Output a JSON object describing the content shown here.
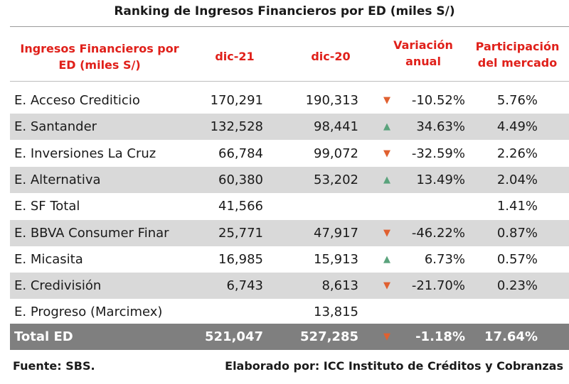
{
  "title": "Ranking de Ingresos Financieros por ED (miles S/)",
  "headers": {
    "col1_line1": "Ingresos Financieros por",
    "col1_line2": "ED (miles S/)",
    "dic21": "dic-21",
    "dic20": "dic-20",
    "var_line1": "Variación",
    "var_line2": "anual",
    "part_line1": "Participación",
    "part_line2": "del mercado"
  },
  "rows": [
    {
      "name": "E. Acceso Crediticio",
      "dic21": "170,291",
      "dic20": "190,313",
      "trend": "down",
      "arrow": "▼",
      "var": "-10.52%",
      "part": "5.76%"
    },
    {
      "name": "E. Santander",
      "dic21": "132,528",
      "dic20": "98,441",
      "trend": "up",
      "arrow": "▲",
      "var": "34.63%",
      "part": "4.49%"
    },
    {
      "name": "E. Inversiones La Cruz",
      "dic21": "66,784",
      "dic20": "99,072",
      "trend": "down",
      "arrow": "▼",
      "var": "-32.59%",
      "part": "2.26%"
    },
    {
      "name": "E. Alternativa",
      "dic21": "60,380",
      "dic20": "53,202",
      "trend": "up",
      "arrow": "▲",
      "var": "13.49%",
      "part": "2.04%"
    },
    {
      "name": "E. SF Total",
      "dic21": "41,566",
      "dic20": "",
      "trend": "",
      "arrow": "",
      "var": "",
      "part": "1.41%"
    },
    {
      "name": "E. BBVA Consumer Finar",
      "dic21": "25,771",
      "dic20": "47,917",
      "trend": "down",
      "arrow": "▼",
      "var": "-46.22%",
      "part": "0.87%"
    },
    {
      "name": "E. Micasita",
      "dic21": "16,985",
      "dic20": "15,913",
      "trend": "up",
      "arrow": "▲",
      "var": "6.73%",
      "part": "0.57%"
    },
    {
      "name": "E. Credivisión",
      "dic21": "6,743",
      "dic20": "8,613",
      "trend": "down",
      "arrow": "▼",
      "var": "-21.70%",
      "part": "0.23%"
    },
    {
      "name": "E. Progreso (Marcimex)",
      "dic21": "",
      "dic20": "13,815",
      "trend": "",
      "arrow": "",
      "var": "",
      "part": ""
    }
  ],
  "total": {
    "name": "Total ED",
    "dic21": "521,047",
    "dic20": "527,285",
    "trend": "down",
    "arrow": "▼",
    "var": "-1.18%",
    "part": "17.64%"
  },
  "footer": {
    "source": "Fuente: SBS.",
    "credit": "Elaborado por: ICC Instituto de Créditos y Cobranzas"
  },
  "colors": {
    "header_red": "#e0201a",
    "shade": "#d9d9d9",
    "total_bg": "#7f7f7f",
    "up": "#5aa37c",
    "down": "#e06030"
  }
}
